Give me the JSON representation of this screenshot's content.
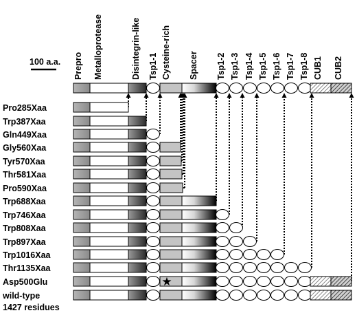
{
  "scale_bar": {
    "label": "100 a.a."
  },
  "domains": [
    "Prepro",
    "Metalloprotease",
    "Disintegrin-like",
    "Tsp1-1",
    "Cysteine-rich",
    "Spacer",
    "Tsp1-2",
    "Tsp1-3",
    "Tsp1-4",
    "Tsp1-5",
    "Tsp1-6",
    "Tsp1-7",
    "Tsp1-8",
    "CUB1",
    "CUB2"
  ],
  "constructs": [
    {
      "label": "Pro285Xaa",
      "end": "metallo-partial"
    },
    {
      "label": "Trp387Xaa",
      "end": "disintegrin"
    },
    {
      "label": "Gln449Xaa",
      "end": "tsp1-1"
    },
    {
      "label": "Gly560Xaa",
      "end": "cys-partial-1"
    },
    {
      "label": "Tyr570Xaa",
      "end": "cys-partial-2"
    },
    {
      "label": "Thr581Xaa",
      "end": "cys-partial-3"
    },
    {
      "label": "Pro590Xaa",
      "end": "cys-full"
    },
    {
      "label": "Trp688Xaa",
      "end": "spacer"
    },
    {
      "label": "Trp746Xaa",
      "end": "tsp1-2"
    },
    {
      "label": "Trp808Xaa",
      "end": "tsp1-3"
    },
    {
      "label": "Trp897Xaa",
      "end": "tsp1-4"
    },
    {
      "label": "Trp1016Xaa",
      "end": "tsp1-6"
    },
    {
      "label": "Thr1135Xaa",
      "end": "tsp1-8"
    },
    {
      "label": "Asp500Glu",
      "end": "full-mutant"
    },
    {
      "label": "wild-type",
      "end": "full"
    }
  ],
  "footer_label": "1427 residues",
  "mutation_symbol": "★"
}
